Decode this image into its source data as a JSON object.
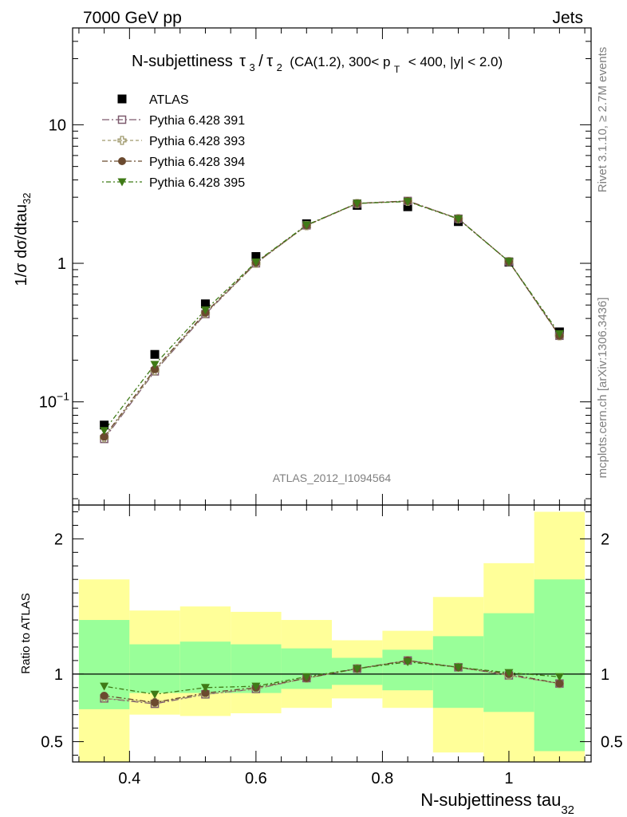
{
  "header": {
    "left": "7000 GeV pp",
    "right": "Jets"
  },
  "side": {
    "rivet": "Rivet 3.1.10, ≥ 2.7M events",
    "mcplots": "mcplots.cern.ch [arXiv:1306.3436]"
  },
  "analysis_id": "ATLAS_2012_I1094564",
  "colors": {
    "data": "#000000",
    "p391": "#7d5a6e",
    "p393": "#a09a6e",
    "p394": "#6b4a2f",
    "p395": "#3f7a16",
    "band_inner": "#99ff99",
    "band_outer": "#ffff99"
  },
  "chart_data": [
    {
      "type": "scatter",
      "panel": "main",
      "title_parts": {
        "main": "N-subjettiness",
        "tau": "τ",
        "sub3": "3",
        "slash": "/",
        "sub2": "2",
        "cuts_a": "(CA(1.2), 300< p",
        "sub_t": "T",
        "cuts_b": "< 400, |y| < 2.0)"
      },
      "ylabel_parts": {
        "main": "1/σ dσ/dtau",
        "sub": "32"
      },
      "yscale": "log",
      "xlim": [
        0.31,
        1.13
      ],
      "ylim": [
        0.018,
        50
      ],
      "yticks": [
        {
          "value": 0.1,
          "label": "10",
          "sup": "−1"
        },
        {
          "value": 1,
          "label": "1",
          "sup": ""
        },
        {
          "value": 10,
          "label": "10",
          "sup": ""
        }
      ],
      "legend_position": "top-left",
      "x": [
        0.36,
        0.44,
        0.52,
        0.6,
        0.68,
        0.76,
        0.84,
        0.92,
        1.0,
        1.08
      ],
      "series": [
        {
          "key": "data",
          "name": "ATLAS",
          "marker": "square-filled",
          "line": false,
          "values": [
            0.068,
            0.22,
            0.51,
            1.12,
            1.93,
            2.62,
            2.56,
            2.0,
            1.02,
            0.32
          ]
        },
        {
          "key": "p391",
          "name": "Pythia 6.428 391",
          "marker": "square-open",
          "line": true,
          "values": [
            0.054,
            0.166,
            0.43,
            1.0,
            1.88,
            2.7,
            2.82,
            2.1,
            1.03,
            0.3
          ]
        },
        {
          "key": "p393",
          "name": "Pythia 6.428 393",
          "marker": "cross-open",
          "line": true,
          "values": [
            0.055,
            0.168,
            0.435,
            1.0,
            1.87,
            2.7,
            2.8,
            2.1,
            1.03,
            0.3
          ]
        },
        {
          "key": "p394",
          "name": "Pythia 6.428 394",
          "marker": "circle-filled",
          "line": true,
          "values": [
            0.056,
            0.172,
            0.44,
            1.01,
            1.88,
            2.71,
            2.82,
            2.1,
            1.03,
            0.3
          ]
        },
        {
          "key": "p395",
          "name": "Pythia 6.428 395",
          "marker": "triangle-down-filled",
          "line": true,
          "values": [
            0.062,
            0.186,
            0.46,
            1.02,
            1.89,
            2.71,
            2.79,
            2.09,
            1.03,
            0.31
          ]
        }
      ]
    },
    {
      "type": "scatter",
      "panel": "ratio",
      "ylabel": "Ratio to ATLAS",
      "xlabel_parts": {
        "main": "N-subjettiness tau",
        "sub": "32"
      },
      "yscale": "linear",
      "xlim": [
        0.31,
        1.13
      ],
      "ylim": [
        0.35,
        2.25
      ],
      "yticks": [
        0.5,
        1,
        2
      ],
      "xticks": [
        0.4,
        0.6,
        0.8,
        1.0
      ],
      "xtick_labels": [
        "0.4",
        "0.6",
        "0.8",
        "1"
      ],
      "reference": 1,
      "bins": [
        {
          "lo": 0.32,
          "hi": 0.4,
          "inner": [
            0.74,
            1.4
          ],
          "outer": [
            0.35,
            1.7
          ]
        },
        {
          "lo": 0.4,
          "hi": 0.48,
          "inner": [
            0.86,
            1.22
          ],
          "outer": [
            0.7,
            1.47
          ]
        },
        {
          "lo": 0.48,
          "hi": 0.56,
          "inner": [
            0.86,
            1.24
          ],
          "outer": [
            0.69,
            1.5
          ]
        },
        {
          "lo": 0.56,
          "hi": 0.64,
          "inner": [
            0.86,
            1.22
          ],
          "outer": [
            0.71,
            1.46
          ]
        },
        {
          "lo": 0.64,
          "hi": 0.72,
          "inner": [
            0.89,
            1.19
          ],
          "outer": [
            0.75,
            1.4
          ]
        },
        {
          "lo": 0.72,
          "hi": 0.8,
          "inner": [
            0.92,
            1.12
          ],
          "outer": [
            0.82,
            1.25
          ]
        },
        {
          "lo": 0.8,
          "hi": 0.88,
          "inner": [
            0.88,
            1.18
          ],
          "outer": [
            0.75,
            1.32
          ]
        },
        {
          "lo": 0.88,
          "hi": 0.96,
          "inner": [
            0.75,
            1.28
          ],
          "outer": [
            0.42,
            1.57
          ]
        },
        {
          "lo": 0.96,
          "hi": 1.04,
          "inner": [
            0.72,
            1.45
          ],
          "outer": [
            0.35,
            1.82
          ]
        },
        {
          "lo": 1.04,
          "hi": 1.12,
          "inner": [
            0.43,
            1.7
          ],
          "outer": [
            0.35,
            2.2
          ]
        }
      ],
      "x": [
        0.36,
        0.44,
        0.52,
        0.6,
        0.68,
        0.76,
        0.84,
        0.92,
        1.0,
        1.08
      ],
      "series": [
        {
          "key": "p391",
          "marker": "square-open",
          "values": [
            0.82,
            0.78,
            0.85,
            0.89,
            0.97,
            1.04,
            1.1,
            1.05,
            0.99,
            0.93
          ]
        },
        {
          "key": "p393",
          "marker": "cross-open",
          "values": [
            0.82,
            0.79,
            0.85,
            0.89,
            0.97,
            1.04,
            1.1,
            1.05,
            0.99,
            0.93
          ]
        },
        {
          "key": "p394",
          "marker": "circle-filled",
          "values": [
            0.84,
            0.79,
            0.86,
            0.9,
            0.97,
            1.04,
            1.1,
            1.05,
            1.0,
            0.93
          ]
        },
        {
          "key": "p395",
          "marker": "triangle-down-filled",
          "values": [
            0.91,
            0.85,
            0.9,
            0.91,
            0.98,
            1.04,
            1.09,
            1.05,
            1.01,
            0.98
          ]
        }
      ]
    }
  ]
}
